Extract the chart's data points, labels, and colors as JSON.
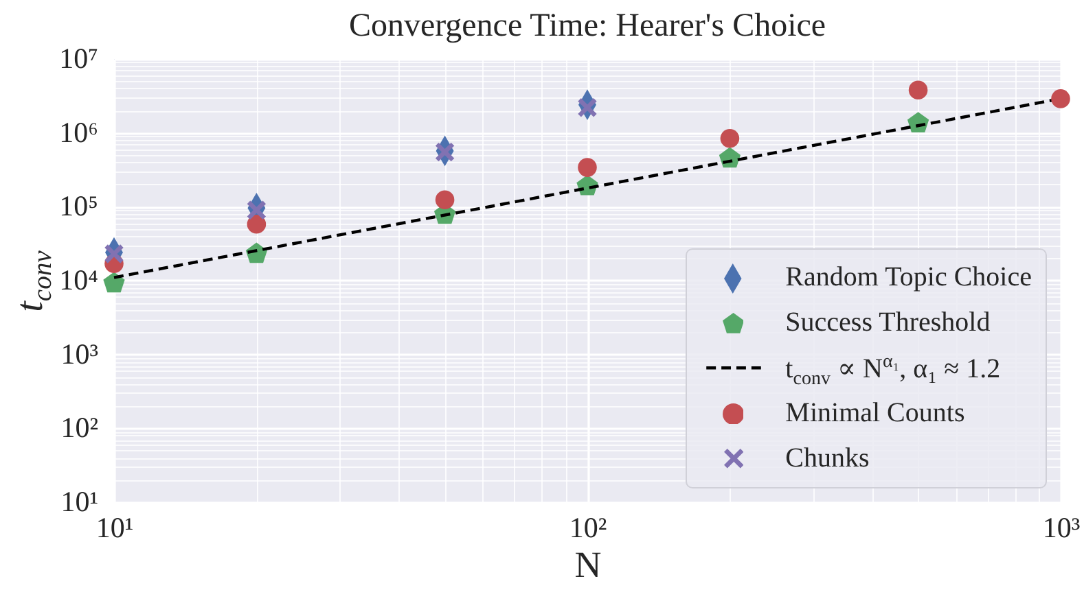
{
  "chart_data": {
    "type": "scatter",
    "title": "Convergence Time: Hearer's Choice",
    "xlabel": "N",
    "ylabel": "t$_{conv}$",
    "log": "xy",
    "xlim": [
      10,
      1000
    ],
    "ylim": [
      10,
      10000000
    ],
    "xticks": [
      {
        "value": 10,
        "label": "10¹"
      },
      {
        "value": 100,
        "label": "10²"
      },
      {
        "value": 1000,
        "label": "10³"
      }
    ],
    "yticks": [
      {
        "value": 10,
        "label": "10¹"
      },
      {
        "value": 100,
        "label": "10²"
      },
      {
        "value": 1000,
        "label": "10³"
      },
      {
        "value": 10000,
        "label": "10⁴"
      },
      {
        "value": 100000,
        "label": "10⁵"
      },
      {
        "value": 1000000,
        "label": "10⁶"
      },
      {
        "value": 10000000,
        "label": "10⁷"
      }
    ],
    "grid": true,
    "legend": "bottom right",
    "series": [
      {
        "name": "Random Topic Choice",
        "color": "#4c72b0",
        "marker": "diamond",
        "x": [
          10,
          20,
          50,
          100
        ],
        "values": [
          24000,
          96000,
          570000,
          2400000
        ]
      },
      {
        "name": "Success Threshold",
        "color": "#55a868",
        "x": [
          10,
          20,
          50,
          100,
          200,
          500
        ],
        "values": [
          9200,
          23000,
          78000,
          190000,
          450000,
          1350000
        ]
      },
      {
        "name": "t$_{conv}$ ∝ N$^{α₁}$, α₁ ≈ 1.2",
        "type": "line",
        "color": "#000000",
        "line_style": "dashed",
        "marker": "none",
        "x": [
          10,
          1000
        ],
        "values": [
          11000,
          2900000
        ]
      },
      {
        "name": "Minimal Counts",
        "color": "#c44e52",
        "marker": "circle",
        "x": [
          10,
          20,
          50,
          100,
          200,
          500,
          1000
        ],
        "values": [
          17000,
          58000,
          124000,
          340000,
          840000,
          3800000,
          2900000
        ]
      },
      {
        "name": "Chunks",
        "color": "#8172b2",
        "marker": "cross",
        "x": [
          10,
          20,
          50,
          100
        ],
        "values": [
          23000,
          90000,
          550000,
          2200000
        ]
      }
    ]
  }
}
